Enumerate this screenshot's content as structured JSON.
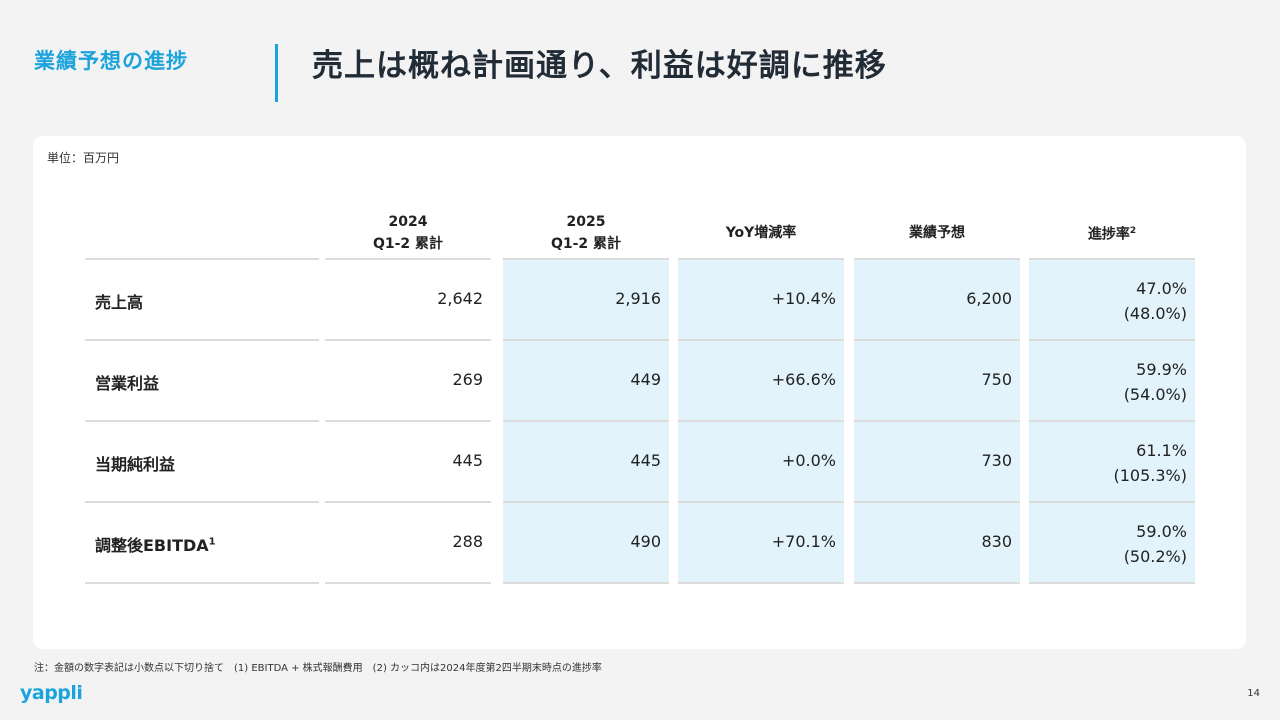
{
  "header": {
    "section_label": "業績予想の進捗",
    "title": "売上は概ね計画通り、利益は好調に推移"
  },
  "table": {
    "unit": "単位：百万円",
    "columns": [
      {
        "line1": "2024",
        "line2": "Q1-2 累計"
      },
      {
        "line1": "2025",
        "line2": "Q1-2 累計"
      },
      {
        "line1": "YoY増減率",
        "line2": ""
      },
      {
        "line1": "業績予想",
        "line2": ""
      },
      {
        "line1": "進捗率",
        "sup": "2",
        "line2": ""
      }
    ],
    "rows": [
      {
        "label": "売上高",
        "sup": "",
        "v2024": "2,642",
        "v2025": "2,916",
        "yoy": "+10.4%",
        "forecast": "6,200",
        "progress": "47.0%",
        "progress_prev": "(48.0%)"
      },
      {
        "label": "営業利益",
        "sup": "",
        "v2024": "269",
        "v2025": "449",
        "yoy": "+66.6%",
        "forecast": "750",
        "progress": "59.9%",
        "progress_prev": "(54.0%)"
      },
      {
        "label": "当期純利益",
        "sup": "",
        "v2024": "445",
        "v2025": "445",
        "yoy": "+0.0%",
        "forecast": "730",
        "progress": "61.1%",
        "progress_prev": "(105.3%)"
      },
      {
        "label": "調整後EBITDA",
        "sup": "1",
        "v2024": "288",
        "v2025": "490",
        "yoy": "+70.1%",
        "forecast": "830",
        "progress": "59.0%",
        "progress_prev": "(50.2%)"
      }
    ]
  },
  "footer": {
    "note": "注：金額の数字表記は小数点以下切り捨て　(1) EBITDA + 株式報酬費用　(2) カッコ内は2024年度第2四半期末時点の進捗率",
    "logo": "yappli",
    "page_number": "14"
  },
  "colors": {
    "accent": "#1ba3dc",
    "highlight_column": "#e2f3fb"
  }
}
